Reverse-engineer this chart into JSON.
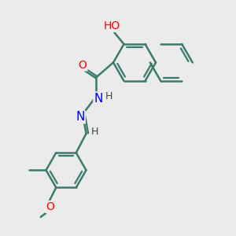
{
  "background_color": "#ebebeb",
  "bond_color": "#3d7a6e",
  "bond_width": 1.8,
  "atom_colors": {
    "O": "#ff0000",
    "N": "#0000ff",
    "H_dark": "#444444"
  },
  "font_size": 9,
  "fig_width": 3.0,
  "fig_height": 3.0,
  "dpi": 100,
  "xlim": [
    0,
    10
  ],
  "ylim": [
    0,
    10
  ]
}
